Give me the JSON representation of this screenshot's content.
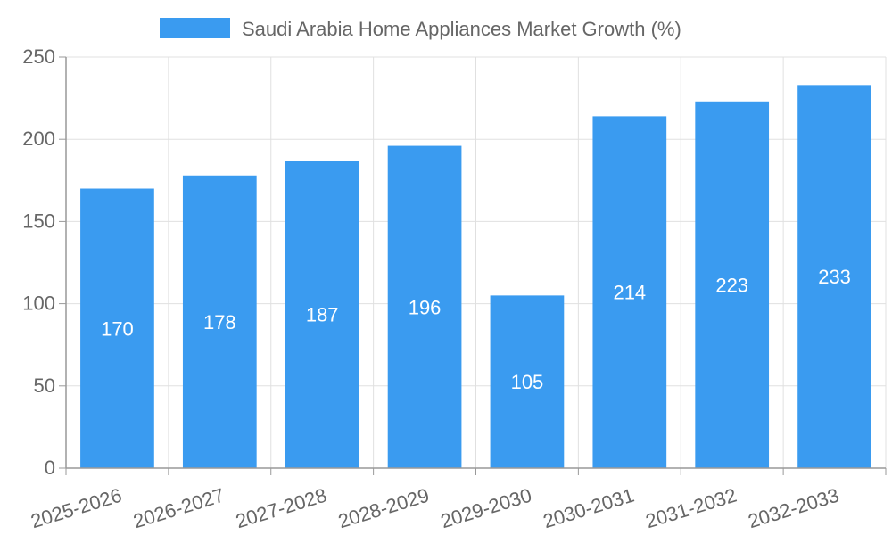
{
  "chart_data": {
    "type": "bar",
    "categories": [
      "2025-2026",
      "2026-2027",
      "2027-2028",
      "2028-2029",
      "2029-2030",
      "2030-2031",
      "2031-2032",
      "2032-2033"
    ],
    "series": [
      {
        "name": "Saudi Arabia Home Appliances Market Growth (%)",
        "values": [
          170,
          178,
          187,
          196,
          105,
          214,
          223,
          233
        ]
      }
    ],
    "ylim": [
      0,
      250
    ],
    "yticks": [
      0,
      50,
      100,
      150,
      200,
      250
    ],
    "grid": true,
    "legend": "top-center",
    "data_labels": true,
    "colors": {
      "bar": "#3a9bf0",
      "grid": "#e0e0e0",
      "axis": "#999999",
      "text": "#666666",
      "label": "#ffffff"
    }
  }
}
